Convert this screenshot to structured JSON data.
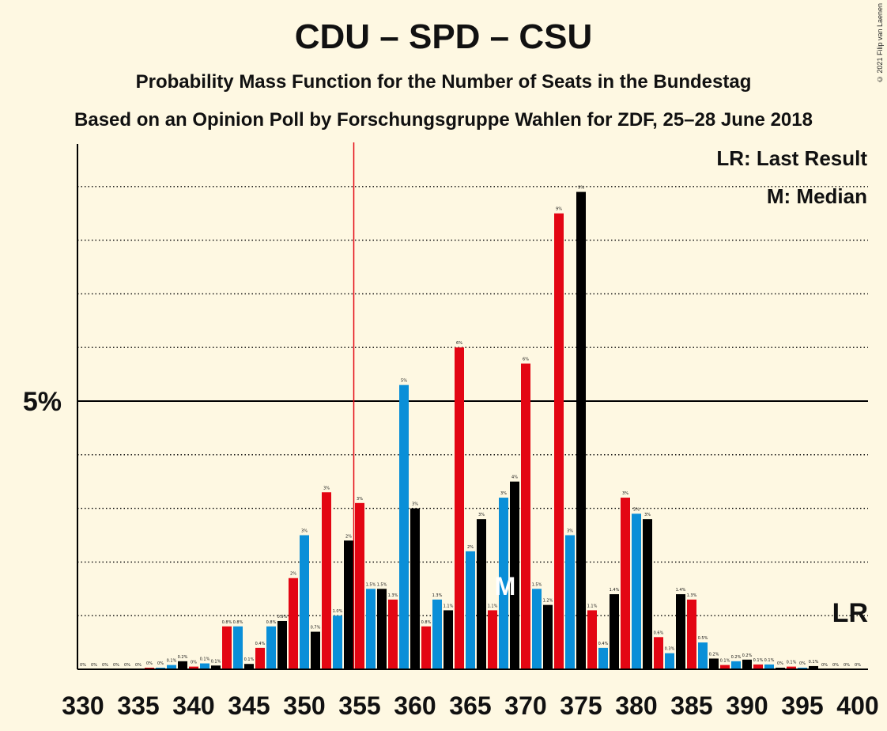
{
  "chart_data": {
    "type": "bar",
    "title": "CDU – SPD – CSU",
    "subtitle": "Probability Mass Function for the Number of Seats in the Bundestag",
    "subtitle2": "Based on an Opinion Poll by Forschungsgruppe Wahlen for ZDF, 25–28 June 2018",
    "copyright": "© 2021 Filip van Laenen",
    "ytick_label": "5%",
    "xticks": [
      330,
      335,
      340,
      345,
      350,
      355,
      360,
      365,
      370,
      375,
      380,
      385,
      390,
      395,
      400
    ],
    "ylim": [
      0,
      9.8
    ],
    "grid": "dotted",
    "last_result_seat": 355,
    "median_seat": 368,
    "legend": {
      "lr": "LR: Last Result",
      "m": "M: Median"
    },
    "lr_marker": "LR",
    "median_marker": "M",
    "colors": {
      "red": "#E30613",
      "blue": "#0A8FD8",
      "black": "#000000"
    },
    "bars": [
      {
        "seat": 330,
        "value": 0,
        "label": "0%",
        "color": "red"
      },
      {
        "seat": 331,
        "value": 0,
        "label": "0%",
        "color": "blue"
      },
      {
        "seat": 332,
        "value": 0,
        "label": "0%",
        "color": "black"
      },
      {
        "seat": 333,
        "value": 0,
        "label": "0%",
        "color": "red"
      },
      {
        "seat": 334,
        "value": 0,
        "label": "0%",
        "color": "blue"
      },
      {
        "seat": 335,
        "value": 0,
        "label": "0%",
        "color": "black"
      },
      {
        "seat": 336,
        "value": 0.03,
        "label": "0%",
        "color": "red"
      },
      {
        "seat": 337,
        "value": 0.03,
        "label": "0%",
        "color": "blue"
      },
      {
        "seat": 338,
        "value": 0.08,
        "label": "0.1%",
        "color": "blue"
      },
      {
        "seat": 339,
        "value": 0.15,
        "label": "0.2%",
        "color": "black"
      },
      {
        "seat": 340,
        "value": 0.05,
        "label": "0%",
        "color": "red"
      },
      {
        "seat": 341,
        "value": 0.11,
        "label": "0.1%",
        "color": "blue"
      },
      {
        "seat": 342,
        "value": 0.07,
        "label": "0.1%",
        "color": "black"
      },
      {
        "seat": 343,
        "value": 0.8,
        "label": "0.8%",
        "color": "red"
      },
      {
        "seat": 344,
        "value": 0.8,
        "label": "0.8%",
        "color": "blue"
      },
      {
        "seat": 345,
        "value": 0.1,
        "label": "0.1%",
        "color": "black"
      },
      {
        "seat": 346,
        "value": 0.4,
        "label": "0.4%",
        "color": "red"
      },
      {
        "seat": 347,
        "value": 0.8,
        "label": "0.8%",
        "color": "blue"
      },
      {
        "seat": 348,
        "value": 0.9,
        "label": "0.9%",
        "color": "black"
      },
      {
        "seat": 349,
        "value": 1.7,
        "label": "2%",
        "color": "red"
      },
      {
        "seat": 350,
        "value": 2.5,
        "label": "3%",
        "color": "blue"
      },
      {
        "seat": 351,
        "value": 0.7,
        "label": "0.7%",
        "color": "black"
      },
      {
        "seat": 352,
        "value": 3.3,
        "label": "3%",
        "color": "red"
      },
      {
        "seat": 353,
        "value": 1.0,
        "label": "1.0%",
        "color": "blue"
      },
      {
        "seat": 354,
        "value": 2.4,
        "label": "2%",
        "color": "black"
      },
      {
        "seat": 355,
        "value": 3.1,
        "label": "3%",
        "color": "red"
      },
      {
        "seat": 356,
        "value": 1.5,
        "label": "1.5%",
        "color": "blue"
      },
      {
        "seat": 357,
        "value": 1.5,
        "label": "1.5%",
        "color": "black"
      },
      {
        "seat": 358,
        "value": 1.3,
        "label": "1.3%",
        "color": "red"
      },
      {
        "seat": 359,
        "value": 5.3,
        "label": "5%",
        "color": "blue"
      },
      {
        "seat": 360,
        "value": 3.0,
        "label": "3%",
        "color": "black"
      },
      {
        "seat": 361,
        "value": 0.8,
        "label": "0.8%",
        "color": "red"
      },
      {
        "seat": 362,
        "value": 1.3,
        "label": "1.3%",
        "color": "blue"
      },
      {
        "seat": 363,
        "value": 1.1,
        "label": "1.1%",
        "color": "black"
      },
      {
        "seat": 364,
        "value": 6.0,
        "label": "6%",
        "color": "red"
      },
      {
        "seat": 365,
        "value": 2.2,
        "label": "2%",
        "color": "blue"
      },
      {
        "seat": 366,
        "value": 2.8,
        "label": "3%",
        "color": "black"
      },
      {
        "seat": 367,
        "value": 1.1,
        "label": "1.1%",
        "color": "red"
      },
      {
        "seat": 368,
        "value": 3.2,
        "label": "3%",
        "color": "blue"
      },
      {
        "seat": 369,
        "value": 3.5,
        "label": "4%",
        "color": "black"
      },
      {
        "seat": 370,
        "value": 5.7,
        "label": "6%",
        "color": "red"
      },
      {
        "seat": 371,
        "value": 1.5,
        "label": "1.5%",
        "color": "blue"
      },
      {
        "seat": 372,
        "value": 1.2,
        "label": "1.2%",
        "color": "black"
      },
      {
        "seat": 373,
        "value": 8.5,
        "label": "9%",
        "color": "red"
      },
      {
        "seat": 374,
        "value": 2.5,
        "label": "3%",
        "color": "blue"
      },
      {
        "seat": 375,
        "value": 8.9,
        "label": "9%",
        "color": "black"
      },
      {
        "seat": 376,
        "value": 1.1,
        "label": "1.1%",
        "color": "red"
      },
      {
        "seat": 377,
        "value": 0.4,
        "label": "0.4%",
        "color": "blue"
      },
      {
        "seat": 378,
        "value": 1.4,
        "label": "1.4%",
        "color": "black"
      },
      {
        "seat": 379,
        "value": 3.2,
        "label": "3%",
        "color": "red"
      },
      {
        "seat": 380,
        "value": 2.9,
        "label": "3%",
        "color": "blue"
      },
      {
        "seat": 381,
        "value": 2.8,
        "label": "3%",
        "color": "black"
      },
      {
        "seat": 382,
        "value": 0.6,
        "label": "0.6%",
        "color": "red"
      },
      {
        "seat": 383,
        "value": 0.3,
        "label": "0.3%",
        "color": "blue"
      },
      {
        "seat": 384,
        "value": 1.4,
        "label": "1.4%",
        "color": "black"
      },
      {
        "seat": 385,
        "value": 1.3,
        "label": "1.3%",
        "color": "red"
      },
      {
        "seat": 386,
        "value": 0.5,
        "label": "0.5%",
        "color": "blue"
      },
      {
        "seat": 387,
        "value": 0.2,
        "label": "0.2%",
        "color": "black"
      },
      {
        "seat": 388,
        "value": 0.08,
        "label": "0.1%",
        "color": "red"
      },
      {
        "seat": 389,
        "value": 0.15,
        "label": "0.2%",
        "color": "blue"
      },
      {
        "seat": 390,
        "value": 0.18,
        "label": "0.2%",
        "color": "black"
      },
      {
        "seat": 391,
        "value": 0.09,
        "label": "0.1%",
        "color": "red"
      },
      {
        "seat": 392,
        "value": 0.09,
        "label": "0.1%",
        "color": "blue"
      },
      {
        "seat": 393,
        "value": 0.03,
        "label": "0%",
        "color": "black"
      },
      {
        "seat": 394,
        "value": 0.05,
        "label": "0.1%",
        "color": "red"
      },
      {
        "seat": 395,
        "value": 0.03,
        "label": "0%",
        "color": "blue"
      },
      {
        "seat": 396,
        "value": 0.06,
        "label": "0.1%",
        "color": "black"
      },
      {
        "seat": 397,
        "value": 0,
        "label": "0%",
        "color": "red"
      },
      {
        "seat": 398,
        "value": 0,
        "label": "0%",
        "color": "blue"
      },
      {
        "seat": 399,
        "value": 0,
        "label": "0%",
        "color": "black"
      },
      {
        "seat": 400,
        "value": 0,
        "label": "0%",
        "color": "black"
      }
    ]
  }
}
